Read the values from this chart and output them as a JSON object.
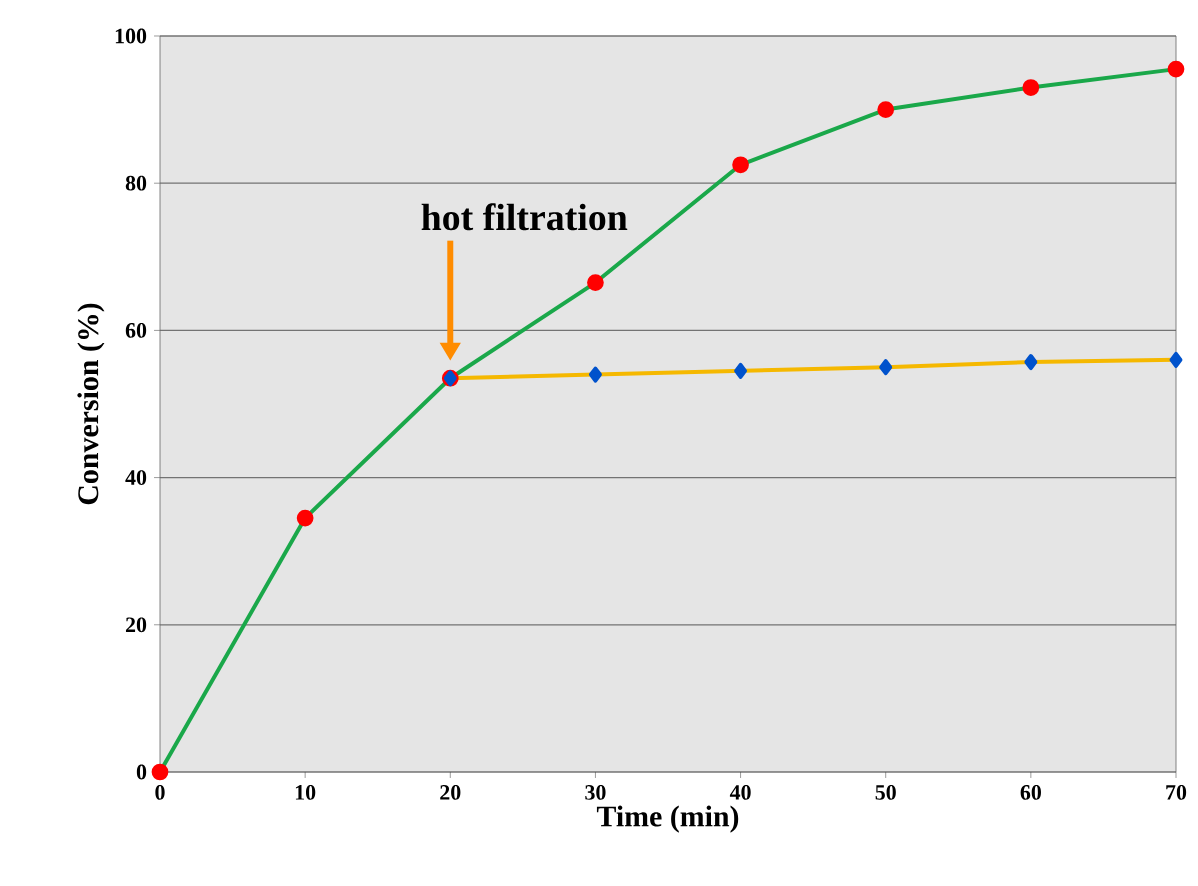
{
  "chart_data": {
    "type": "line",
    "xlabel": "Time (min)",
    "ylabel": "Conversion (%)",
    "xlim": [
      0,
      70
    ],
    "xticks": [
      0,
      10,
      20,
      30,
      40,
      50,
      60,
      70
    ],
    "ylim": [
      0,
      100
    ],
    "yticks": [
      0,
      20,
      40,
      60,
      80,
      100
    ],
    "grid": "y",
    "series": [
      {
        "color": "#1aa84a",
        "marker": "circle",
        "x": [
          0,
          10,
          20,
          30,
          40,
          50,
          60,
          70
        ],
        "values": [
          0,
          34.5,
          53.5,
          66.5,
          82.5,
          90,
          93,
          95.5
        ]
      },
      {
        "color": "#f5b800",
        "marker": "diamond",
        "x": [
          20,
          30,
          40,
          50,
          60,
          70
        ],
        "values": [
          53.5,
          54,
          54.5,
          55,
          55.7,
          56
        ]
      }
    ],
    "annotations": [
      "hot filtration"
    ]
  }
}
